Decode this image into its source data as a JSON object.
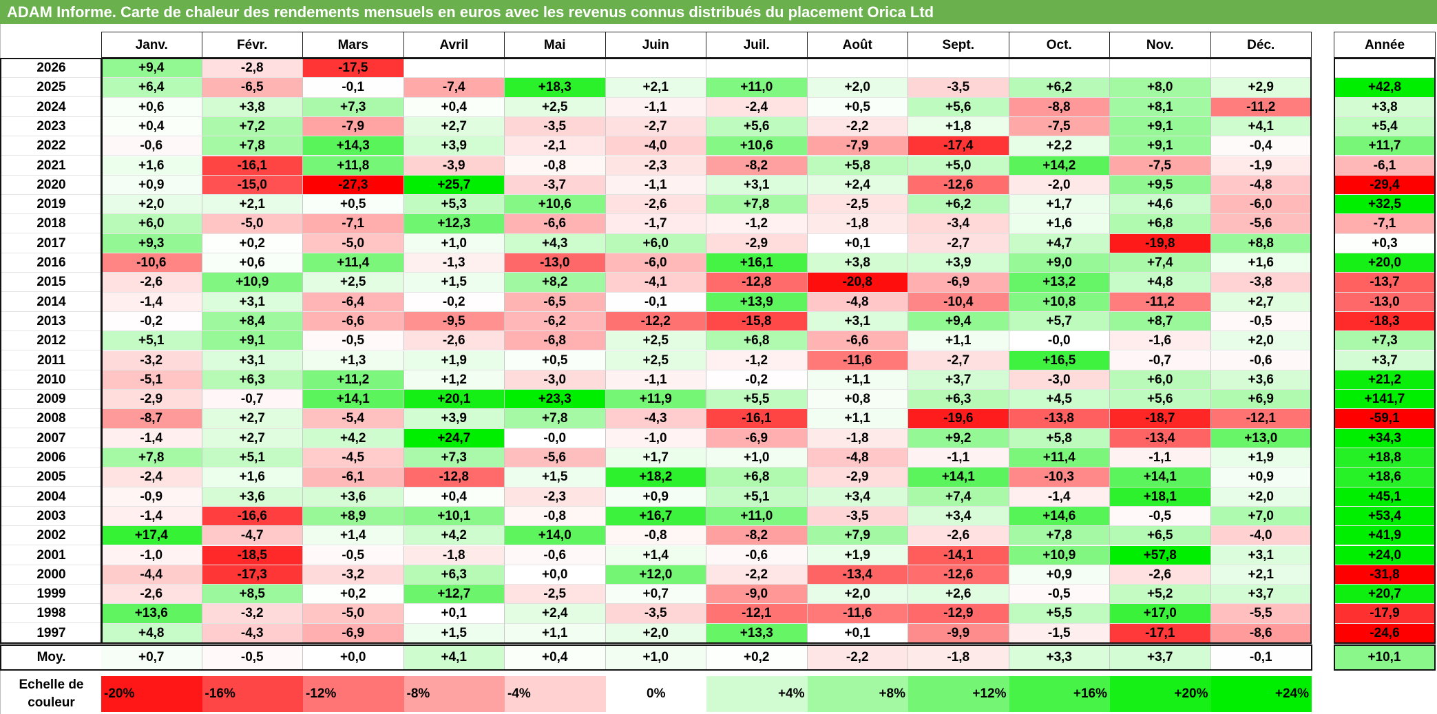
{
  "title": "ADAM Informe. Carte de chaleur des rendements mensuels en euros avec les revenus connus distribués du placement Orica Ltd",
  "chart_data": {
    "type": "heatmap",
    "title": "ADAM Informe. Carte de chaleur des rendements mensuels en euros avec les revenus connus distribués du placement Orica Ltd",
    "columns": [
      "Janv.",
      "Févr.",
      "Mars",
      "Avril",
      "Mai",
      "Juin",
      "Juil.",
      "Août",
      "Sept.",
      "Oct.",
      "Nov.",
      "Déc."
    ],
    "year_column": "Année",
    "rows": [
      {
        "year": "2026",
        "values": [
          "+9,4",
          "-2,8",
          "-17,5",
          "",
          "",
          "",
          "",
          "",
          "",
          "",
          "",
          ""
        ],
        "annual": ""
      },
      {
        "year": "2025",
        "values": [
          "+6,4",
          "-6,5",
          "-0,1",
          "-7,4",
          "+18,3",
          "+2,1",
          "+11,0",
          "+2,0",
          "-3,5",
          "+6,2",
          "+8,0",
          "+2,9"
        ],
        "annual": "+42,8"
      },
      {
        "year": "2024",
        "values": [
          "+0,6",
          "+3,8",
          "+7,3",
          "+0,4",
          "+2,5",
          "-1,1",
          "-2,4",
          "+0,5",
          "+5,6",
          "-8,8",
          "+8,1",
          "-11,2"
        ],
        "annual": "+3,8"
      },
      {
        "year": "2023",
        "values": [
          "+0,4",
          "+7,2",
          "-7,9",
          "+2,7",
          "-3,5",
          "-2,7",
          "+5,6",
          "-2,2",
          "+1,8",
          "-7,5",
          "+9,1",
          "+4,1"
        ],
        "annual": "+5,4"
      },
      {
        "year": "2022",
        "values": [
          "-0,6",
          "+7,8",
          "+14,3",
          "+3,9",
          "-2,1",
          "-4,0",
          "+10,6",
          "-7,9",
          "-17,4",
          "+2,2",
          "+9,1",
          "-0,4"
        ],
        "annual": "+11,7"
      },
      {
        "year": "2021",
        "values": [
          "+1,6",
          "-16,1",
          "+11,8",
          "-3,9",
          "-0,8",
          "-2,3",
          "-8,2",
          "+5,8",
          "+5,0",
          "+14,2",
          "-7,5",
          "-1,9"
        ],
        "annual": "-6,1"
      },
      {
        "year": "2020",
        "values": [
          "+0,9",
          "-15,0",
          "-27,3",
          "+25,7",
          "-3,7",
          "-1,1",
          "+3,1",
          "+2,4",
          "-12,6",
          "-2,0",
          "+9,5",
          "-4,8"
        ],
        "annual": "-29,4"
      },
      {
        "year": "2019",
        "values": [
          "+2,0",
          "+2,1",
          "+0,5",
          "+5,3",
          "+10,6",
          "-2,6",
          "+7,8",
          "-2,5",
          "+6,2",
          "+1,7",
          "+4,6",
          "-6,0"
        ],
        "annual": "+32,5"
      },
      {
        "year": "2018",
        "values": [
          "+6,0",
          "-5,0",
          "-7,1",
          "+12,3",
          "-6,6",
          "-1,7",
          "-1,2",
          "-1,8",
          "-3,4",
          "+1,6",
          "+6,8",
          "-5,6"
        ],
        "annual": "-7,1"
      },
      {
        "year": "2017",
        "values": [
          "+9,3",
          "+0,2",
          "-5,0",
          "+1,0",
          "+4,3",
          "+6,0",
          "-2,9",
          "+0,1",
          "-2,7",
          "+4,7",
          "-19,8",
          "+8,8"
        ],
        "annual": "+0,3"
      },
      {
        "year": "2016",
        "values": [
          "-10,6",
          "+0,6",
          "+11,4",
          "-1,3",
          "-13,0",
          "-6,0",
          "+16,1",
          "+3,8",
          "+3,9",
          "+9,0",
          "+7,4",
          "+1,6"
        ],
        "annual": "+20,0"
      },
      {
        "year": "2015",
        "values": [
          "-2,6",
          "+10,9",
          "+2,5",
          "+1,5",
          "+8,2",
          "-4,1",
          "-12,8",
          "-20,8",
          "-6,9",
          "+13,2",
          "+4,8",
          "-3,8"
        ],
        "annual": "-13,7"
      },
      {
        "year": "2014",
        "values": [
          "-1,4",
          "+3,1",
          "-6,4",
          "-0,2",
          "-6,5",
          "-0,1",
          "+13,9",
          "-4,8",
          "-10,4",
          "+10,8",
          "-11,2",
          "+2,7"
        ],
        "annual": "-13,0"
      },
      {
        "year": "2013",
        "values": [
          "-0,2",
          "+8,4",
          "-6,6",
          "-9,5",
          "-6,2",
          "-12,2",
          "-15,8",
          "+3,1",
          "+9,4",
          "+5,7",
          "+8,7",
          "-0,5"
        ],
        "annual": "-18,3"
      },
      {
        "year": "2012",
        "values": [
          "+5,1",
          "+9,1",
          "-0,5",
          "-2,6",
          "-6,8",
          "+2,5",
          "+6,8",
          "-6,6",
          "+1,1",
          "-0,0",
          "-1,6",
          "+2,0"
        ],
        "annual": "+7,3"
      },
      {
        "year": "2011",
        "values": [
          "-3,2",
          "+3,1",
          "+1,3",
          "+1,9",
          "+0,5",
          "+2,5",
          "-1,2",
          "-11,6",
          "-2,7",
          "+16,5",
          "-0,7",
          "-0,6"
        ],
        "annual": "+3,7"
      },
      {
        "year": "2010",
        "values": [
          "-5,1",
          "+6,3",
          "+11,2",
          "+1,2",
          "-3,0",
          "-1,1",
          "-0,2",
          "+1,1",
          "+3,7",
          "-3,0",
          "+6,0",
          "+3,6"
        ],
        "annual": "+21,2"
      },
      {
        "year": "2009",
        "values": [
          "-2,9",
          "-0,7",
          "+14,1",
          "+20,1",
          "+23,3",
          "+11,9",
          "+5,5",
          "+0,8",
          "+6,3",
          "+4,5",
          "+5,6",
          "+6,9"
        ],
        "annual": "+141,7"
      },
      {
        "year": "2008",
        "values": [
          "-8,7",
          "+2,7",
          "-5,4",
          "+3,9",
          "+7,8",
          "-4,3",
          "-16,1",
          "+1,1",
          "-19,6",
          "-13,8",
          "-18,7",
          "-12,1"
        ],
        "annual": "-59,1"
      },
      {
        "year": "2007",
        "values": [
          "-1,4",
          "+2,7",
          "+4,2",
          "+24,7",
          "-0,0",
          "-1,0",
          "-6,9",
          "-1,8",
          "+9,2",
          "+5,8",
          "-13,4",
          "+13,0"
        ],
        "annual": "+34,3"
      },
      {
        "year": "2006",
        "values": [
          "+7,8",
          "+5,1",
          "-4,5",
          "+7,3",
          "-5,6",
          "+1,7",
          "+1,0",
          "-4,8",
          "-1,1",
          "+11,4",
          "-1,1",
          "+1,9"
        ],
        "annual": "+18,8"
      },
      {
        "year": "2005",
        "values": [
          "-2,4",
          "+1,6",
          "-6,1",
          "-12,8",
          "+1,5",
          "+18,2",
          "+6,8",
          "-2,9",
          "+14,1",
          "-10,3",
          "+14,1",
          "+0,9"
        ],
        "annual": "+18,6"
      },
      {
        "year": "2004",
        "values": [
          "-0,9",
          "+3,6",
          "+3,6",
          "+0,4",
          "-2,3",
          "+0,9",
          "+5,1",
          "+3,4",
          "+7,4",
          "-1,4",
          "+18,1",
          "+2,0"
        ],
        "annual": "+45,1"
      },
      {
        "year": "2003",
        "values": [
          "-1,4",
          "-16,6",
          "+8,9",
          "+10,1",
          "-0,8",
          "+16,7",
          "+11,0",
          "-3,5",
          "+3,4",
          "+14,6",
          "-0,5",
          "+7,0"
        ],
        "annual": "+53,4"
      },
      {
        "year": "2002",
        "values": [
          "+17,4",
          "-4,7",
          "+1,4",
          "+4,2",
          "+14,0",
          "-0,8",
          "-8,2",
          "+7,9",
          "-2,6",
          "+7,8",
          "+6,5",
          "-4,0"
        ],
        "annual": "+41,9"
      },
      {
        "year": "2001",
        "values": [
          "-1,0",
          "-18,5",
          "-0,5",
          "-1,8",
          "-0,6",
          "+1,4",
          "-0,6",
          "+1,9",
          "-14,1",
          "+10,9",
          "+57,8",
          "+3,1"
        ],
        "annual": "+24,0"
      },
      {
        "year": "2000",
        "values": [
          "-4,4",
          "-17,3",
          "-3,2",
          "+6,3",
          "+0,0",
          "+12,0",
          "-2,2",
          "-13,4",
          "-12,6",
          "+0,9",
          "-2,6",
          "+2,1"
        ],
        "annual": "-31,8"
      },
      {
        "year": "1999",
        "values": [
          "-2,6",
          "+8,5",
          "+0,2",
          "+12,7",
          "-2,5",
          "+0,7",
          "-9,0",
          "+2,0",
          "+2,6",
          "-0,5",
          "+5,2",
          "+3,7"
        ],
        "annual": "+20,7"
      },
      {
        "year": "1998",
        "values": [
          "+13,6",
          "-3,2",
          "-5,0",
          "+0,1",
          "+2,4",
          "-3,5",
          "-12,1",
          "-11,6",
          "-12,9",
          "+5,5",
          "+17,0",
          "-5,5"
        ],
        "annual": "-17,9"
      },
      {
        "year": "1997",
        "values": [
          "+4,8",
          "-4,3",
          "-6,9",
          "+1,5",
          "+1,1",
          "+2,0",
          "+13,3",
          "+0,1",
          "-9,9",
          "-1,5",
          "-17,1",
          "-8,6"
        ],
        "annual": "-24,6"
      }
    ],
    "average": {
      "label": "Moy.",
      "values": [
        "+0,7",
        "-0,5",
        "+0,0",
        "+4,1",
        "+0,4",
        "+1,0",
        "+0,2",
        "-2,2",
        "-1,8",
        "+3,3",
        "+3,7",
        "-0,1"
      ],
      "annual": "+10,1"
    },
    "legend": {
      "label": "Echelle de couleur",
      "steps": [
        "-20%",
        "-16%",
        "-12%",
        "-8%",
        "-4%",
        "0%",
        "+4%",
        "+8%",
        "+12%",
        "+16%",
        "+20%",
        "+24%"
      ],
      "step_values": [
        -20,
        -16,
        -12,
        -8,
        -4,
        0,
        4,
        8,
        12,
        16,
        20,
        24
      ]
    },
    "colors": {
      "negative": "#ff0000",
      "positive": "#00ee00",
      "neutral": "#ffffff",
      "title_bar": "#6ab04c"
    }
  }
}
